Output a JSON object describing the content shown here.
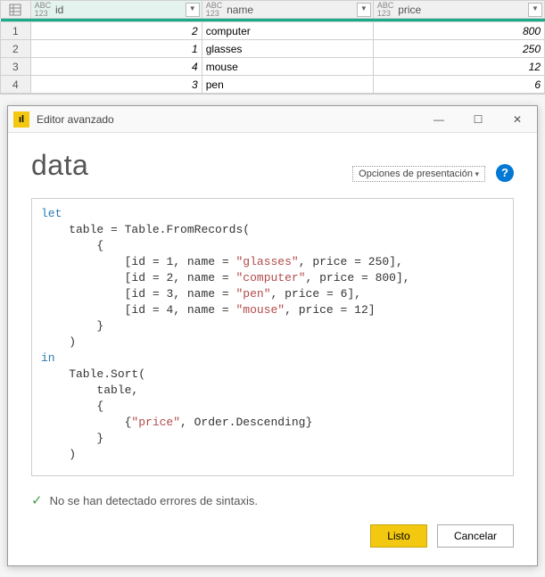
{
  "table": {
    "columns": [
      {
        "type_prefix": "ABC",
        "type_sub": "123",
        "name": "id",
        "selected": true
      },
      {
        "type_prefix": "ABC",
        "type_sub": "123",
        "name": "name",
        "selected": false
      },
      {
        "type_prefix": "ABC",
        "type_sub": "123",
        "name": "price",
        "selected": false
      }
    ],
    "rows": [
      {
        "n": "1",
        "id": "2",
        "name": "computer",
        "price": "800"
      },
      {
        "n": "2",
        "id": "1",
        "name": "glasses",
        "price": "250"
      },
      {
        "n": "3",
        "id": "4",
        "name": "mouse",
        "price": "12"
      },
      {
        "n": "4",
        "id": "3",
        "name": "pen",
        "price": "6"
      }
    ],
    "header_bg": "#f0f0f0",
    "selected_underline": "#1aab8a",
    "border_color": "#d0d0d0"
  },
  "editor": {
    "window_title": "Editor avanzado",
    "heading": "data",
    "presentation_label": "Opciones de presentación",
    "help_symbol": "?",
    "code_tokens": [
      [
        {
          "t": "let",
          "c": "kw"
        }
      ],
      [
        {
          "t": "    table ",
          "c": ""
        },
        {
          "t": "=",
          "c": ""
        },
        {
          "t": " Table",
          "c": "fn"
        },
        {
          "t": ".",
          "c": ""
        },
        {
          "t": "FromRecords",
          "c": "fn"
        },
        {
          "t": "(",
          "c": ""
        }
      ],
      [
        {
          "t": "        {",
          "c": ""
        }
      ],
      [
        {
          "t": "            [id ",
          "c": ""
        },
        {
          "t": "=",
          "c": ""
        },
        {
          "t": " ",
          "c": ""
        },
        {
          "t": "1",
          "c": "num2"
        },
        {
          "t": ", name ",
          "c": ""
        },
        {
          "t": "=",
          "c": ""
        },
        {
          "t": " ",
          "c": ""
        },
        {
          "t": "\"glasses\"",
          "c": "str"
        },
        {
          "t": ", price ",
          "c": ""
        },
        {
          "t": "=",
          "c": ""
        },
        {
          "t": " ",
          "c": ""
        },
        {
          "t": "250",
          "c": "num2"
        },
        {
          "t": "],",
          "c": ""
        }
      ],
      [
        {
          "t": "            [id ",
          "c": ""
        },
        {
          "t": "=",
          "c": ""
        },
        {
          "t": " ",
          "c": ""
        },
        {
          "t": "2",
          "c": "num2"
        },
        {
          "t": ", name ",
          "c": ""
        },
        {
          "t": "=",
          "c": ""
        },
        {
          "t": " ",
          "c": ""
        },
        {
          "t": "\"computer\"",
          "c": "str"
        },
        {
          "t": ", price ",
          "c": ""
        },
        {
          "t": "=",
          "c": ""
        },
        {
          "t": " ",
          "c": ""
        },
        {
          "t": "800",
          "c": "num2"
        },
        {
          "t": "],",
          "c": ""
        }
      ],
      [
        {
          "t": "            [id ",
          "c": ""
        },
        {
          "t": "=",
          "c": ""
        },
        {
          "t": " ",
          "c": ""
        },
        {
          "t": "3",
          "c": "num2"
        },
        {
          "t": ", name ",
          "c": ""
        },
        {
          "t": "=",
          "c": ""
        },
        {
          "t": " ",
          "c": ""
        },
        {
          "t": "\"pen\"",
          "c": "str"
        },
        {
          "t": ", price ",
          "c": ""
        },
        {
          "t": "=",
          "c": ""
        },
        {
          "t": " ",
          "c": ""
        },
        {
          "t": "6",
          "c": "num2"
        },
        {
          "t": "],",
          "c": ""
        }
      ],
      [
        {
          "t": "            [id ",
          "c": ""
        },
        {
          "t": "=",
          "c": ""
        },
        {
          "t": " ",
          "c": ""
        },
        {
          "t": "4",
          "c": "num2"
        },
        {
          "t": ", name ",
          "c": ""
        },
        {
          "t": "=",
          "c": ""
        },
        {
          "t": " ",
          "c": ""
        },
        {
          "t": "\"mouse\"",
          "c": "str"
        },
        {
          "t": ", price ",
          "c": ""
        },
        {
          "t": "=",
          "c": ""
        },
        {
          "t": " ",
          "c": ""
        },
        {
          "t": "12",
          "c": "num2"
        },
        {
          "t": "]",
          "c": ""
        }
      ],
      [
        {
          "t": "        }",
          "c": ""
        }
      ],
      [
        {
          "t": "    )",
          "c": ""
        }
      ],
      [
        {
          "t": "in",
          "c": "kw"
        }
      ],
      [
        {
          "t": "    Table",
          "c": "fn"
        },
        {
          "t": ".",
          "c": ""
        },
        {
          "t": "Sort",
          "c": "fn"
        },
        {
          "t": "(",
          "c": ""
        }
      ],
      [
        {
          "t": "        table,",
          "c": "fn"
        }
      ],
      [
        {
          "t": "        {",
          "c": ""
        }
      ],
      [
        {
          "t": "            {",
          "c": ""
        },
        {
          "t": "\"price\"",
          "c": "str"
        },
        {
          "t": ", Order",
          "c": "fn"
        },
        {
          "t": ".",
          "c": ""
        },
        {
          "t": "Descending",
          "c": "fn"
        },
        {
          "t": "}",
          "c": ""
        }
      ],
      [
        {
          "t": "        }",
          "c": ""
        }
      ],
      [
        {
          "t": "    )",
          "c": ""
        }
      ]
    ],
    "status_text": "No se han detectado errores de sintaxis.",
    "btn_done": "Listo",
    "btn_cancel": "Cancelar",
    "accent_color": "#f2c811",
    "help_bg": "#0078d4"
  }
}
